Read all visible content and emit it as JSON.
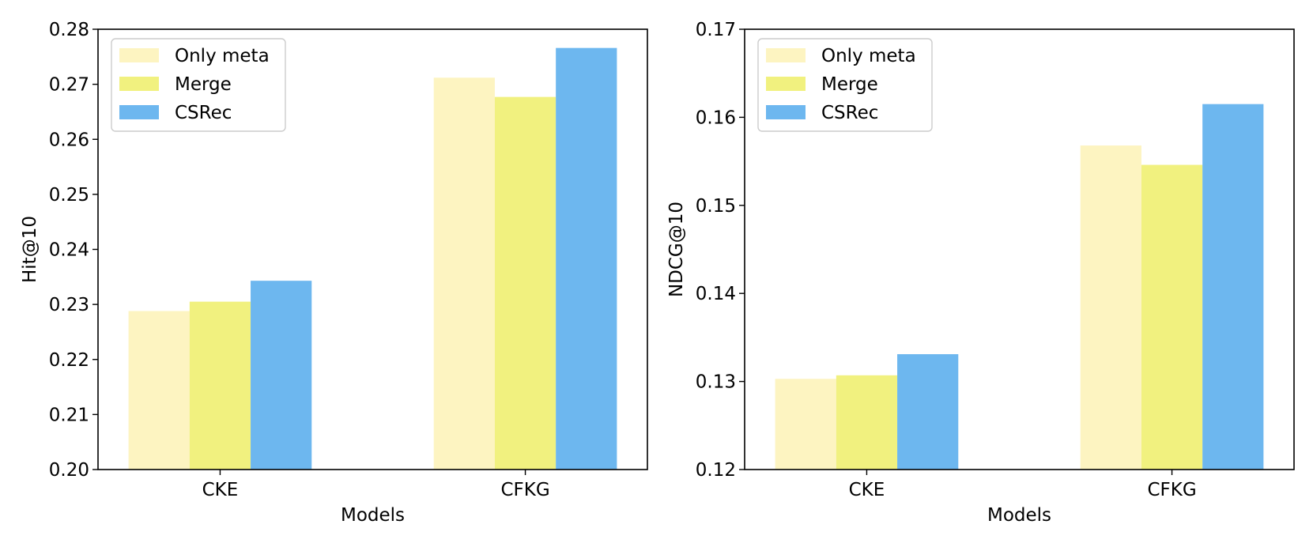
{
  "chart_data": [
    {
      "type": "bar",
      "xlabel": "Models",
      "ylabel": "Hit@10",
      "categories": [
        "CKE",
        "CFKG"
      ],
      "ylim": [
        0.2,
        0.28
      ],
      "yticks": [
        "0.20",
        "0.21",
        "0.22",
        "0.23",
        "0.24",
        "0.25",
        "0.26",
        "0.27",
        "0.28"
      ],
      "legend_position": "top-left",
      "series": [
        {
          "name": "Only meta",
          "color": "#fdf4c1",
          "values": [
            0.2288,
            0.2712
          ]
        },
        {
          "name": "Merge",
          "color": "#f1f17f",
          "values": [
            0.2305,
            0.2677
          ]
        },
        {
          "name": "CSRec",
          "color": "#6db7ef",
          "values": [
            0.2343,
            0.2766
          ]
        }
      ]
    },
    {
      "type": "bar",
      "xlabel": "Models",
      "ylabel": "NDCG@10",
      "categories": [
        "CKE",
        "CFKG"
      ],
      "ylim": [
        0.12,
        0.17
      ],
      "yticks": [
        "0.12",
        "0.13",
        "0.14",
        "0.15",
        "0.16",
        "0.17"
      ],
      "legend_position": "top-left",
      "series": [
        {
          "name": "Only meta",
          "color": "#fdf4c1",
          "values": [
            0.1303,
            0.1568
          ]
        },
        {
          "name": "Merge",
          "color": "#f1f17f",
          "values": [
            0.1307,
            0.1546
          ]
        },
        {
          "name": "CSRec",
          "color": "#6db7ef",
          "values": [
            0.1331,
            0.1615
          ]
        }
      ]
    }
  ]
}
